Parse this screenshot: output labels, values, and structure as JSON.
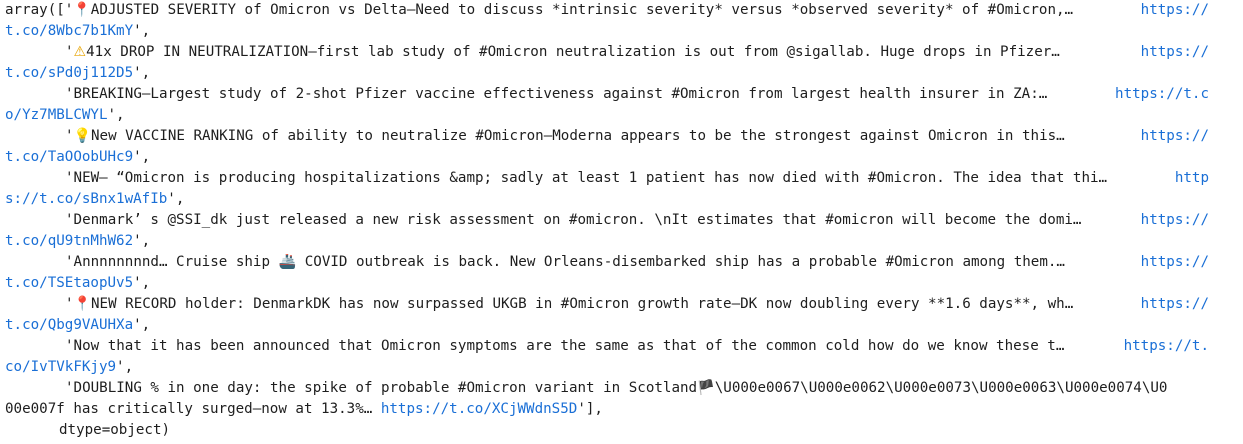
{
  "output": {
    "prefix": "array([",
    "suffix": "],",
    "dtype_line": "dtype=object)",
    "items": [
      {
        "emoji": "📍",
        "text": "ADJUSTED SEVERITY of Omicron vs Delta—Need to discuss *intrinsic severity* versus *observed severity* of #Omicron,… ",
        "url_part1": "https://",
        "url_part2": "t.co/8Wbc7b1KmY"
      },
      {
        "emoji": "⚠",
        "text": "41x DROP IN NEUTRALIZATION—first lab study of #Omicron neutralization is out from @sigallab. Huge drops in Pfizer… ",
        "url_part1": "https://",
        "url_part2": "t.co/sPd0j112D5"
      },
      {
        "emoji": "",
        "text": "BREAKING—Largest study of 2-shot Pfizer vaccine effectiveness against #Omicron from largest health insurer in ZA:… ",
        "url_part1": "https://t.c",
        "url_part2": "o/Yz7MBLCWYL"
      },
      {
        "emoji": "💡",
        "text": "New VACCINE RANKING of ability to neutralize #Omicron—Moderna appears to be the strongest against Omicron in this… ",
        "url_part1": "https://",
        "url_part2": "t.co/TaOOobUHc9"
      },
      {
        "emoji": "",
        "text": "NEW— “Omicron is producing hospitalizations &amp; sadly at least 1 patient has now died with #Omicron. The idea that thi… ",
        "url_part1": "http",
        "url_part2": "s://t.co/sBnx1wAfIb"
      },
      {
        "emoji": "",
        "text": "Denmark’ s @SSI_dk just released a new risk assessment on #omicron. \\nIt estimates that #omicron will become the domi… ",
        "url_part1": "https://",
        "url_part2": "t.co/qU9tnMhW62"
      },
      {
        "emoji": "",
        "text": "Annnnnnnnd… Cruise ship 🚢 COVID outbreak is back. New Orleans-disembarked ship has a probable #Omicron among them.… ",
        "url_part1": "https://",
        "url_part2": "t.co/TSEtaopUv5"
      },
      {
        "emoji": "📍",
        "text": "NEW RECORD holder: DenmarkDK has now surpassed UKGB in #Omicron growth rate—DK now doubling every **1.6 days**, wh… ",
        "url_part1": "https://",
        "url_part2": "t.co/Qbg9VAUHXa"
      },
      {
        "emoji": "",
        "text": "Now that it has been announced that Omicron symptoms are the same as that of the common cold how do we know these t… ",
        "url_part1": "https://t.",
        "url_part2": "co/IvTVkFKjy9"
      },
      {
        "emoji": "",
        "text": "DOUBLING % in one day: the spike of probable #Omicron variant in Scotland🏴\\U000e0067\\U000e0062\\U000e0073\\U000e0063\\U000e0074\\U0",
        "cont_text": "00e007f has critically surged—now at 13.3%… ",
        "url_part1": "https://t.co/XCjWWdnS5D",
        "url_part2": ""
      }
    ]
  }
}
